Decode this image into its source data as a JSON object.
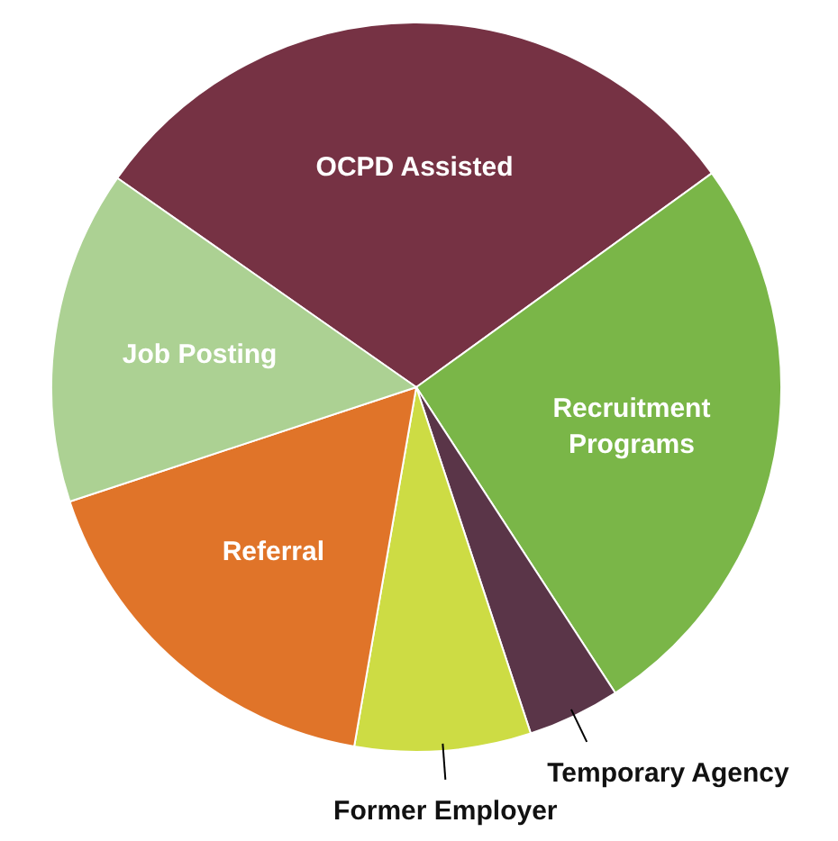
{
  "chart_data": {
    "type": "pie",
    "categories": [
      "OCPD Assisted",
      "Recruitment Programs",
      "Temporary Agency",
      "Former Employer",
      "Referral",
      "Job Posting"
    ],
    "values": [
      30.3,
      25.8,
      4.1,
      7.8,
      17.2,
      14.8
    ],
    "colors": [
      "#763244",
      "#7ab648",
      "#5a3548",
      "#cddc44",
      "#e07429",
      "#acd193"
    ]
  }
}
